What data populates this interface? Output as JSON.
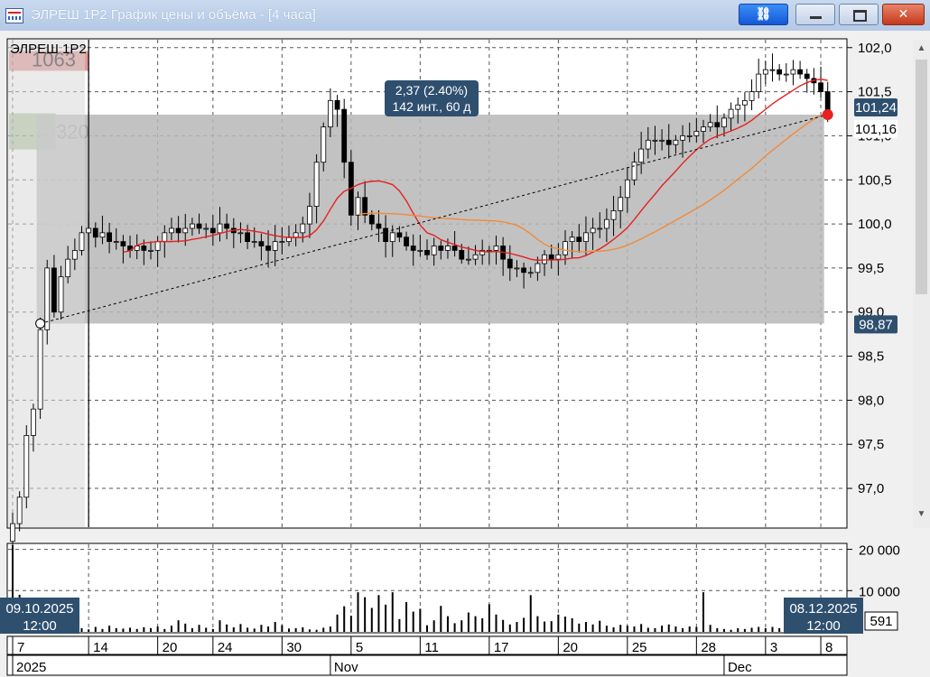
{
  "window": {
    "title": "ЭЛРЕШ 1P2 График цены и объёма - [4 часа]",
    "buttons": {
      "link": "link-icon",
      "minimize": "minimize-icon",
      "maximize": "maximize-icon",
      "close": "close-icon"
    }
  },
  "chart_data": {
    "type": "candlestick",
    "instrument_label": "ЭЛРЕШ 1P2",
    "price_axis": {
      "ticks": [
        "102,0",
        "101,5",
        "101,0",
        "100,5",
        "100,0",
        "99,5",
        "99,0",
        "98,5",
        "98,0",
        "97,5",
        "97,0"
      ],
      "range": [
        96.55,
        102.1
      ]
    },
    "volume_axis": {
      "ticks": [
        "20 000",
        "10 000"
      ],
      "range": [
        0,
        21000
      ]
    },
    "date_axis": {
      "days": [
        {
          "label": "7",
          "idx": 0
        },
        {
          "label": "14",
          "idx": 11
        },
        {
          "label": "20",
          "idx": 21
        },
        {
          "label": "24",
          "idx": 29
        },
        {
          "label": "30",
          "idx": 39
        },
        {
          "label": "5",
          "idx": 49
        },
        {
          "label": "11",
          "idx": 59
        },
        {
          "label": "17",
          "idx": 69
        },
        {
          "label": "20",
          "idx": 79
        },
        {
          "label": "25",
          "idx": 89
        },
        {
          "label": "28",
          "idx": 99
        },
        {
          "label": "3",
          "idx": 109
        },
        {
          "label": "8",
          "idx": 117
        }
      ],
      "months": [
        {
          "label": "2025",
          "idx": 0
        },
        {
          "label": "Nov",
          "idx": 46
        },
        {
          "label": "Dec",
          "idx": 103
        }
      ]
    },
    "colors": {
      "candle": "#000000",
      "ma_fast": "#e82020",
      "ma_slow": "#f08a3c",
      "range_fill": "#b7b7b7",
      "volume": "#000000"
    },
    "volume_profile": [
      {
        "label": "1063",
        "value": 1063
      },
      {
        "label": "320",
        "value": 320
      }
    ],
    "range_box": {
      "start_idx": 4,
      "end_idx": 118,
      "low": 98.87,
      "high": 101.24
    },
    "measure": {
      "line": "2,37 (2.40%)",
      "detail": "142 инт., 60 д",
      "from": {
        "idx": 4,
        "price": 98.87
      },
      "to": {
        "idx": 118,
        "price": 101.24
      }
    },
    "price_labels": {
      "last": "101,24",
      "secondary": "101,16",
      "low": "98,87"
    },
    "crosshair": {
      "start_date": "09.10.2025",
      "start_time": "12:00",
      "end_date": "08.12.2025",
      "end_time": "12:00",
      "volume": "591"
    },
    "closes": [
      96.6,
      96.9,
      97.6,
      97.9,
      98.8,
      99.5,
      99.0,
      99.4,
      99.6,
      99.7,
      99.9,
      99.95,
      99.85,
      99.9,
      99.8,
      99.8,
      99.75,
      99.7,
      99.75,
      99.7,
      99.7,
      99.8,
      99.9,
      99.95,
      99.9,
      99.95,
      100.0,
      99.95,
      99.95,
      99.9,
      100.0,
      99.95,
      99.9,
      99.9,
      99.8,
      99.8,
      99.75,
      99.7,
      99.8,
      99.8,
      99.85,
      99.9,
      100.0,
      100.2,
      100.7,
      101.1,
      101.4,
      101.3,
      100.7,
      100.1,
      100.3,
      100.1,
      100.0,
      99.95,
      99.8,
      99.9,
      99.85,
      99.75,
      99.7,
      99.7,
      99.65,
      99.75,
      99.7,
      99.75,
      99.7,
      99.6,
      99.6,
      99.65,
      99.7,
      99.7,
      99.75,
      99.6,
      99.5,
      99.5,
      99.45,
      99.45,
      99.55,
      99.65,
      99.6,
      99.65,
      99.8,
      99.85,
      99.8,
      99.9,
      99.95,
      99.95,
      100.05,
      100.15,
      100.3,
      100.5,
      100.7,
      100.85,
      100.95,
      100.95,
      100.95,
      100.9,
      100.95,
      101.0,
      101.0,
      101.05,
      101.1,
      101.15,
      101.1,
      101.2,
      101.3,
      101.35,
      101.4,
      101.5,
      101.7,
      101.75,
      101.75,
      101.7,
      101.7,
      101.75,
      101.7,
      101.65,
      101.6,
      101.5,
      101.24
    ],
    "volumes": [
      21000,
      9000,
      3000,
      800,
      1200,
      1000,
      700,
      900,
      1100,
      800,
      900,
      600,
      1200,
      700,
      1500,
      900,
      800,
      1000,
      700,
      1100,
      900,
      1300,
      700,
      1500,
      2800,
      2000,
      900,
      1700,
      1000,
      700,
      2800,
      1800,
      1100,
      1900,
      1000,
      800,
      1700,
      1300,
      2400,
      1600,
      800,
      900,
      1100,
      600,
      500,
      1000,
      1300,
      4200,
      6200,
      3900,
      9600,
      8400,
      5800,
      8900,
      6600,
      9600,
      3100,
      7200,
      4900,
      5600,
      1600,
      2800,
      6300,
      3800,
      2100,
      2800,
      4700,
      3800,
      3300,
      6700,
      4200,
      2900,
      1800,
      2400,
      3400,
      8900,
      3800,
      2500,
      2600,
      4200,
      3700,
      3300,
      2000,
      2400,
      1800,
      2700,
      1500,
      1100,
      1700,
      1500,
      1300,
      1900,
      1000,
      900,
      1500,
      1800,
      1300,
      900,
      1300,
      1200,
      9600,
      1700,
      900,
      700,
      500,
      900,
      700,
      1000,
      1200,
      900,
      1200,
      900,
      2300,
      2000,
      1500,
      1700,
      1000,
      900,
      2500
    ]
  }
}
